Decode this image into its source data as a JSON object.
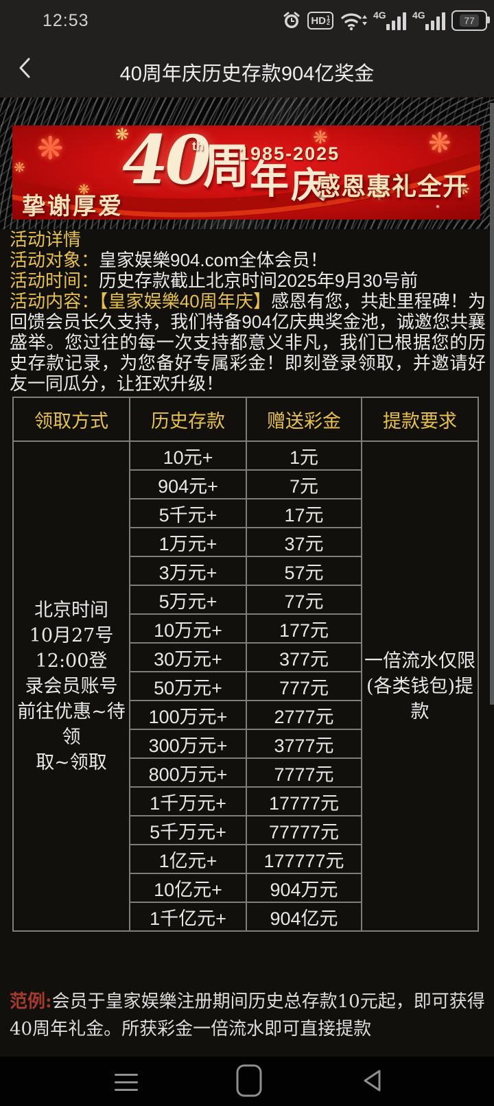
{
  "colors": {
    "accent_yellow": "#e6c24a",
    "banner_red": "#c90e0e",
    "note_red": "#a63b2c",
    "border_grey": "#7e7e7e",
    "cream": "#f7ead0"
  },
  "status_bar": {
    "time": "12:53",
    "hd_label": "HD",
    "hd_sup": "1",
    "hd_sub": "2",
    "network_label_1": "4G",
    "network_label_2": "4G",
    "battery_percent": "77",
    "icons": [
      "alarm-icon",
      "hd-badge-icon",
      "wifi-icon",
      "signal-icon",
      "signal-icon",
      "battery-icon"
    ]
  },
  "header": {
    "title": "40周年庆历史存款904亿奖金"
  },
  "banner": {
    "left_text": "挚谢厚爱",
    "big_number": "40",
    "ordinal": "th",
    "char_zhou": "周",
    "char_nian": "年",
    "char_qing": "庆",
    "years": "1985-2025",
    "right_text": "感恩惠礼全开",
    "firework_glyph": "❋"
  },
  "details": {
    "title": "活动详情",
    "target_label": "活动对象：",
    "target_text": "皇家娱樂904.com全体会员！",
    "time_label": "活动时间：",
    "time_text": "历史存款截止北京时间2025年9月30号前",
    "content_label": "活动内容：",
    "content_highlight": "【皇家娱樂40周年庆】",
    "content_text": "感恩有您，共赴里程碑！为回馈会员长久支持，我们特备904亿庆典奖金池，诚邀您共襄盛举。您过往的每一次支持都意义非凡，我们已根据您的历史存款记录，为您备好专属彩金！即刻登录领取，并邀请好友一同瓜分，让狂欢升级！"
  },
  "table": {
    "headers": [
      "领取方式",
      "历史存款",
      "赠送彩金",
      "提款要求"
    ],
    "method": "北京时间\n10月27号12:00登\n录会员账号\n前往优惠~待领\n取~领取",
    "requirement": "一倍流水仅限\n(各类钱包)提款",
    "rows": [
      {
        "deposit": "10元+",
        "bonus": "1元"
      },
      {
        "deposit": "904元+",
        "bonus": "7元"
      },
      {
        "deposit": "5千元+",
        "bonus": "17元"
      },
      {
        "deposit": "1万元+",
        "bonus": "37元"
      },
      {
        "deposit": "3万元+",
        "bonus": "57元"
      },
      {
        "deposit": "5万元+",
        "bonus": "77元"
      },
      {
        "deposit": "10万元+",
        "bonus": "177元"
      },
      {
        "deposit": "30万元+",
        "bonus": "377元"
      },
      {
        "deposit": "50万元+",
        "bonus": "777元"
      },
      {
        "deposit": "100万元+",
        "bonus": "2777元"
      },
      {
        "deposit": "300万元+",
        "bonus": "3777元"
      },
      {
        "deposit": "800万元+",
        "bonus": "7777元"
      },
      {
        "deposit": "1千万元+",
        "bonus": "17777元"
      },
      {
        "deposit": "5千万元+",
        "bonus": "77777元"
      },
      {
        "deposit": "1亿元+",
        "bonus": "177777元"
      },
      {
        "deposit": "10亿元+",
        "bonus": "904万元"
      },
      {
        "deposit": "1千亿元+",
        "bonus": "904亿元"
      }
    ]
  },
  "footnote": {
    "label": "范例:",
    "text": "会员于皇家娱樂注册期间历史总存款10元起，即可获得40周年礼金。所获彩金一倍流水即可直接提款"
  },
  "nav_bar": {
    "icons": [
      "recents-icon",
      "home-icon",
      "back-triangle-icon"
    ]
  }
}
